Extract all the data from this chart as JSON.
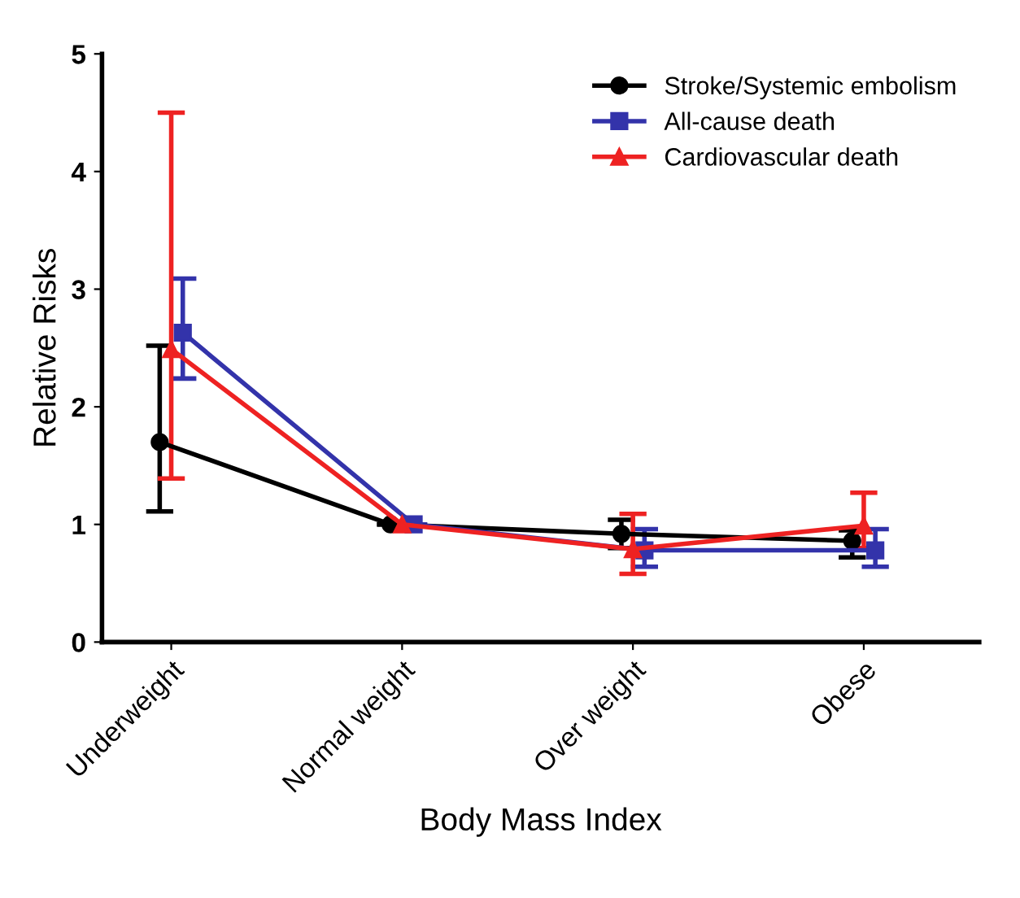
{
  "chart_data": {
    "type": "line",
    "xlabel": "Body Mass Index",
    "ylabel": "Relative Risks",
    "categories": [
      "Underweight",
      "Normal weight",
      "Over weight",
      "Obese"
    ],
    "ylim": [
      0,
      5
    ],
    "yticks": [
      0,
      1,
      2,
      3,
      4,
      5
    ],
    "grid": false,
    "legend": "top right",
    "line_style": "solid",
    "series": [
      {
        "name": "Stroke/Systemic embolism",
        "color": "#000000",
        "marker": "circle",
        "values": [
          1.7,
          1.0,
          0.92,
          0.86
        ],
        "errors": [
          [
            1.11,
            2.52
          ],
          null,
          [
            0.8,
            1.04
          ],
          [
            0.72,
            0.95
          ]
        ]
      },
      {
        "name": "All-cause death",
        "color": "#3333aa",
        "marker": "square",
        "values": [
          2.63,
          1.0,
          0.78,
          0.78
        ],
        "errors": [
          [
            2.24,
            3.09
          ],
          null,
          [
            0.64,
            0.96
          ],
          [
            0.64,
            0.96
          ]
        ]
      },
      {
        "name": "Cardiovascular death",
        "color": "#ee2222",
        "marker": "triangle",
        "values": [
          2.49,
          1.0,
          0.79,
          0.99
        ],
        "errors": [
          [
            1.39,
            4.5
          ],
          null,
          [
            0.58,
            1.09
          ],
          [
            0.8,
            1.27
          ]
        ]
      }
    ]
  }
}
